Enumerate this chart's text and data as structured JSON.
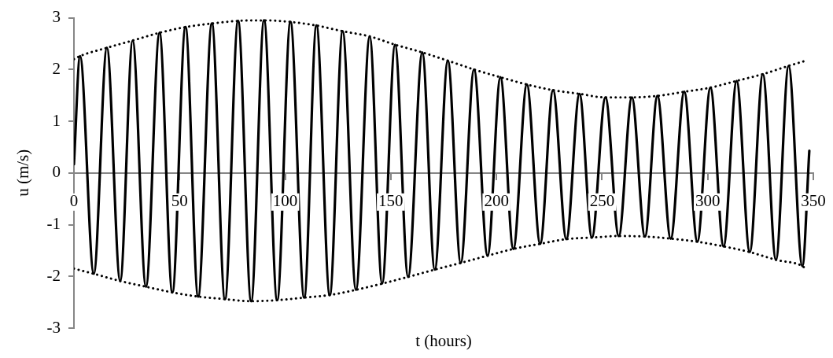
{
  "chart_data": {
    "type": "line",
    "xlabel": "t (hours)",
    "ylabel": "u (m/s)",
    "xlim": [
      0,
      350
    ],
    "ylim": [
      -3,
      3
    ],
    "xticks": [
      0,
      50,
      100,
      150,
      200,
      250,
      300,
      350
    ],
    "yticks": [
      -3,
      -2,
      -1,
      0,
      1,
      2,
      3
    ],
    "grid": false,
    "legend": false,
    "marker": "none",
    "series": [
      {
        "color": "#000000",
        "line_style": "solid",
        "x": [
          0,
          2.9,
          9.4,
          15.6,
          21.9,
          27.8,
          34.1,
          40.5,
          46.6,
          52.8,
          58.8,
          65.3,
          71.5,
          77.7,
          83.9,
          90.0,
          96.2,
          102.5,
          109.0,
          114.8,
          121.1,
          127.2,
          133.5,
          140.0,
          145.9,
          152.0,
          158.2,
          164.9,
          170.8,
          177.0,
          183.1,
          189.4,
          195.8,
          201.9,
          208.0,
          214.4,
          220.7,
          226.8,
          233.1,
          239.3,
          245.2,
          251.6,
          257.9,
          264.1,
          270.3,
          276.2,
          282.5,
          288.9,
          295.1,
          301.3,
          307.5,
          313.7,
          319.9,
          326.1,
          332.3,
          338.3,
          344.8,
          348.1
        ],
        "values": [
          0.17,
          2.26,
          -1.95,
          2.42,
          -2.09,
          2.56,
          -2.2,
          2.71,
          -2.31,
          2.82,
          -2.39,
          2.89,
          -2.44,
          2.94,
          -2.48,
          2.95,
          -2.46,
          2.92,
          -2.41,
          2.85,
          -2.36,
          2.74,
          -2.26,
          2.64,
          -2.14,
          2.48,
          -2.01,
          2.33,
          -1.87,
          2.17,
          -1.74,
          2.0,
          -1.6,
          1.85,
          -1.47,
          1.71,
          -1.37,
          1.6,
          -1.28,
          1.53,
          -1.25,
          1.46,
          -1.22,
          1.46,
          -1.23,
          1.49,
          -1.27,
          1.57,
          -1.33,
          1.65,
          -1.42,
          1.78,
          -1.53,
          1.91,
          -1.68,
          2.07,
          -1.8,
          0.43
        ]
      },
      {
        "color": "#000000",
        "line_style": "dotted",
        "x": [
          0,
          2.9,
          15.6,
          27.8,
          40.5,
          52.8,
          65.3,
          77.7,
          90.0,
          102.5,
          114.8,
          127.2,
          140.0,
          152.0,
          164.9,
          177.0,
          189.4,
          201.9,
          214.4,
          226.8,
          239.3,
          251.6,
          264.1,
          276.2,
          288.9,
          301.3,
          313.7,
          326.1,
          338.3,
          345.7
        ],
        "values": [
          2.2,
          2.26,
          2.42,
          2.56,
          2.71,
          2.82,
          2.89,
          2.94,
          2.95,
          2.92,
          2.85,
          2.74,
          2.64,
          2.48,
          2.33,
          2.17,
          2.0,
          1.85,
          1.71,
          1.6,
          1.53,
          1.46,
          1.46,
          1.49,
          1.57,
          1.65,
          1.78,
          1.91,
          2.07,
          2.16
        ]
      },
      {
        "color": "#000000",
        "line_style": "dotted",
        "x": [
          0,
          9.4,
          21.9,
          34.1,
          46.6,
          58.8,
          71.5,
          83.9,
          96.2,
          109.0,
          121.1,
          133.5,
          145.9,
          158.2,
          170.8,
          183.1,
          195.8,
          208.0,
          220.7,
          233.1,
          245.2,
          257.9,
          270.3,
          282.5,
          295.1,
          307.5,
          319.9,
          332.3,
          344.8,
          345.7
        ],
        "values": [
          -1.85,
          -1.95,
          -2.09,
          -2.2,
          -2.31,
          -2.39,
          -2.44,
          -2.48,
          -2.46,
          -2.41,
          -2.36,
          -2.26,
          -2.14,
          -2.01,
          -1.87,
          -1.74,
          -1.6,
          -1.47,
          -1.37,
          -1.28,
          -1.25,
          -1.22,
          -1.23,
          -1.27,
          -1.33,
          -1.42,
          -1.53,
          -1.68,
          -1.8,
          -1.83
        ]
      }
    ]
  }
}
